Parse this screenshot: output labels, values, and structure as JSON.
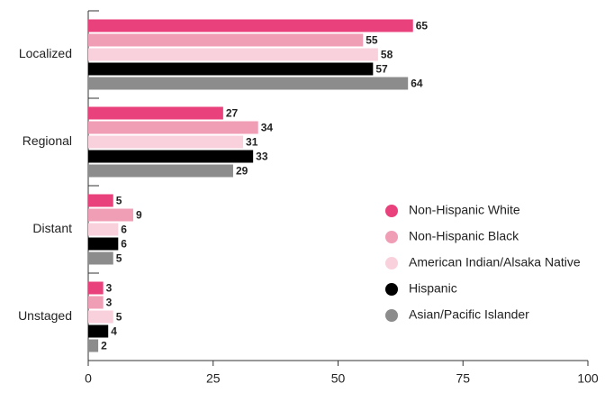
{
  "chart_data": {
    "type": "bar",
    "orientation": "horizontal",
    "categories": [
      "Localized",
      "Regional",
      "Distant",
      "Unstaged"
    ],
    "series": [
      {
        "name": "Non-Hispanic White",
        "color": "#e8417b",
        "values": [
          65,
          27,
          5,
          3
        ]
      },
      {
        "name": "Non-Hispanic Black",
        "color": "#f09db6",
        "values": [
          55,
          34,
          9,
          3
        ]
      },
      {
        "name": "American Indian/Alsaka Native",
        "color": "#f9d1dc",
        "values": [
          58,
          31,
          6,
          5
        ]
      },
      {
        "name": "Hispanic",
        "color": "#000000",
        "values": [
          57,
          33,
          6,
          4
        ]
      },
      {
        "name": "Asian/Pacific Islander",
        "color": "#8c8c8c",
        "values": [
          64,
          29,
          5,
          2
        ]
      }
    ],
    "xlim": [
      0,
      100
    ],
    "xticks": [
      0,
      25,
      50,
      75,
      100
    ],
    "legend": "center-right"
  }
}
